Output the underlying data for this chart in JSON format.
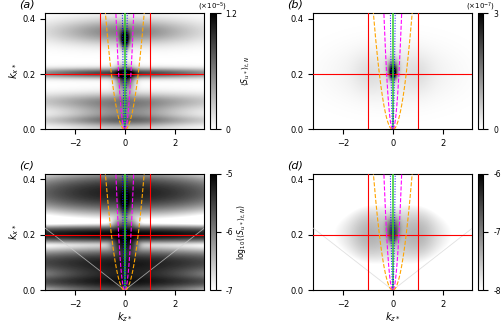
{
  "panels": [
    {
      "label": "(a)",
      "scale_label": "(\\times10^{-5})",
      "vmin": 0,
      "vmax": 1.2,
      "log": false,
      "cbar_ticks": [
        0,
        1.2
      ],
      "cbar_tick_labels": [
        "0",
        "1.2"
      ],
      "ylabel_u": true
    },
    {
      "label": "(b)",
      "scale_label": "(\\times10^{-7})",
      "vmin": 0,
      "vmax": 3,
      "log": false,
      "cbar_ticks": [
        0,
        3
      ],
      "cbar_tick_labels": [
        "0",
        "3"
      ],
      "ylabel_u": false
    },
    {
      "label": "(c)",
      "scale_label": "",
      "vmin": -7,
      "vmax": -5,
      "log": true,
      "cbar_ticks": [
        -7,
        -6,
        -5
      ],
      "cbar_tick_labels": [
        "-7",
        "-6",
        "-5"
      ],
      "ylabel_u": true
    },
    {
      "label": "(d)",
      "scale_label": "",
      "vmin": -8,
      "vmax": -6,
      "log": true,
      "cbar_ticks": [
        -8,
        -7,
        -6
      ],
      "cbar_tick_labels": [
        "-8",
        "-7",
        "-6"
      ],
      "ylabel_u": false
    }
  ],
  "kz_range": [
    -3.2,
    3.2
  ],
  "kx_range": [
    0.0,
    0.42
  ],
  "red_kx": 0.2,
  "red_kz": [
    -1.0,
    1.0
  ],
  "kz_ticks": [
    -2,
    0,
    2
  ],
  "kx_ticks": [
    0,
    0.2,
    0.4
  ]
}
